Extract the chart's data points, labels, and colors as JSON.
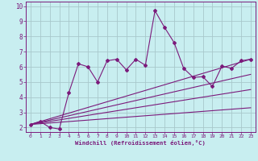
{
  "xlabel": "Windchill (Refroidissement éolien,°C)",
  "bg_color": "#c8eef0",
  "grid_color": "#a8c8cc",
  "line_color": "#7b1a7b",
  "spine_color": "#7b1a7b",
  "xlim": [
    -0.5,
    23.5
  ],
  "ylim": [
    1.7,
    10.3
  ],
  "yticks": [
    2,
    3,
    4,
    5,
    6,
    7,
    8,
    9,
    10
  ],
  "xticks": [
    0,
    1,
    2,
    3,
    4,
    5,
    6,
    7,
    8,
    9,
    10,
    11,
    12,
    13,
    14,
    15,
    16,
    17,
    18,
    19,
    20,
    21,
    22,
    23
  ],
  "series1_x": [
    0,
    1,
    2,
    3,
    4,
    5,
    6,
    7,
    8,
    9,
    10,
    11,
    12,
    13,
    14,
    15,
    16,
    17,
    18,
    19,
    20,
    21,
    22,
    23
  ],
  "series1_y": [
    2.2,
    2.4,
    2.0,
    1.9,
    4.3,
    6.2,
    6.0,
    5.0,
    6.4,
    6.5,
    5.8,
    6.5,
    6.1,
    9.7,
    8.6,
    7.6,
    5.9,
    5.3,
    5.35,
    4.7,
    6.05,
    5.9,
    6.4,
    6.5
  ],
  "series2_x": [
    0,
    23
  ],
  "series2_y": [
    2.2,
    6.5
  ],
  "series3_x": [
    0,
    23
  ],
  "series3_y": [
    2.2,
    5.5
  ],
  "series4_x": [
    0,
    23
  ],
  "series4_y": [
    2.2,
    4.5
  ],
  "series5_x": [
    0,
    23
  ],
  "series5_y": [
    2.2,
    3.3
  ]
}
